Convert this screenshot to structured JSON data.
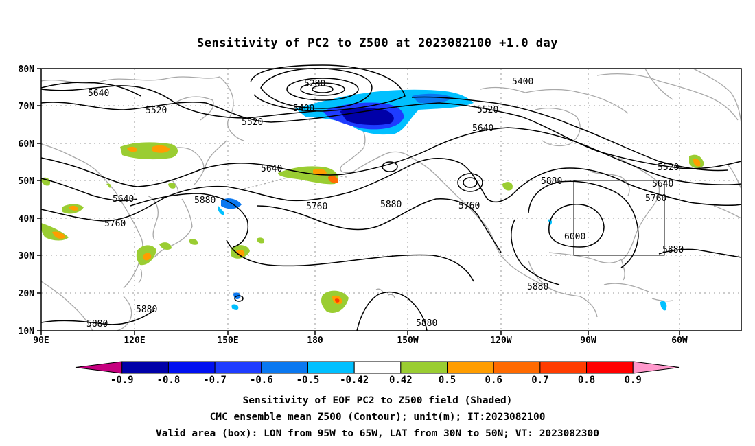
{
  "title": "Sensitivity of PC2 to Z500 at 2023082100 +1.0 day",
  "lat_ticks": [
    "80N",
    "70N",
    "60N",
    "50N",
    "40N",
    "30N",
    "20N",
    "10N"
  ],
  "lon_ticks": [
    "90E",
    "120E",
    "150E",
    "180",
    "150W",
    "120W",
    "90W",
    "60W"
  ],
  "contour_labels": [
    {
      "text": "5640",
      "id": "c5640-nw"
    },
    {
      "text": "5520",
      "id": "c5520-a"
    },
    {
      "text": "5520",
      "id": "c5520-b"
    },
    {
      "text": "5280",
      "id": "c5280"
    },
    {
      "text": "5400",
      "id": "c5400-a"
    },
    {
      "text": "5400",
      "id": "c5400-b"
    },
    {
      "text": "5520",
      "id": "c5520-c"
    },
    {
      "text": "5640",
      "id": "c5640-c"
    },
    {
      "text": "5640",
      "id": "c5640-d"
    },
    {
      "text": "5640",
      "id": "c5640-e"
    },
    {
      "text": "5520",
      "id": "c5520-d"
    },
    {
      "text": "5640",
      "id": "c5640-f"
    },
    {
      "text": "5760",
      "id": "c5760-a"
    },
    {
      "text": "5760",
      "id": "c5760-b"
    },
    {
      "text": "5760",
      "id": "c5760-c"
    },
    {
      "text": "5760",
      "id": "c5760-d"
    },
    {
      "text": "5880",
      "id": "c5880-a"
    },
    {
      "text": "5880",
      "id": "c5880-b"
    },
    {
      "text": "5880",
      "id": "c5880-c"
    },
    {
      "text": "5880",
      "id": "c5880-d"
    },
    {
      "text": "5880",
      "id": "c5880-e"
    },
    {
      "text": "5880",
      "id": "c5880-f"
    },
    {
      "text": "5880",
      "id": "c5880-g"
    },
    {
      "text": "5880",
      "id": "c5880-h"
    },
    {
      "text": "6000",
      "id": "c6000"
    }
  ],
  "colorbar": {
    "colors": [
      "#c6007f",
      "#0000a8",
      "#0010f0",
      "#1e3cff",
      "#0a78f0",
      "#00c0ff",
      "#ffffff",
      "#9acd32",
      "#ff9d00",
      "#ff6a00",
      "#ff3c00",
      "#ff0000",
      "#ff99cc"
    ],
    "labels": [
      "-0.9",
      "-0.8",
      "-0.7",
      "-0.6",
      "-0.5",
      "-0.42",
      "0.42",
      "0.5",
      "0.6",
      "0.7",
      "0.8",
      "0.9"
    ]
  },
  "caption": {
    "line1": "Sensitivity of EOF PC2 to Z500 field (Shaded)",
    "line2": "CMC ensemble mean Z500 (Contour); unit(m); IT:2023082100",
    "line3": "Valid area (box): LON from 95W to 65W, LAT from 30N to 50N; VT: 2023082300"
  },
  "valid_box": {
    "lon_west": "95W",
    "lon_east": "65W",
    "lat_south": "30N",
    "lat_north": "50N"
  }
}
